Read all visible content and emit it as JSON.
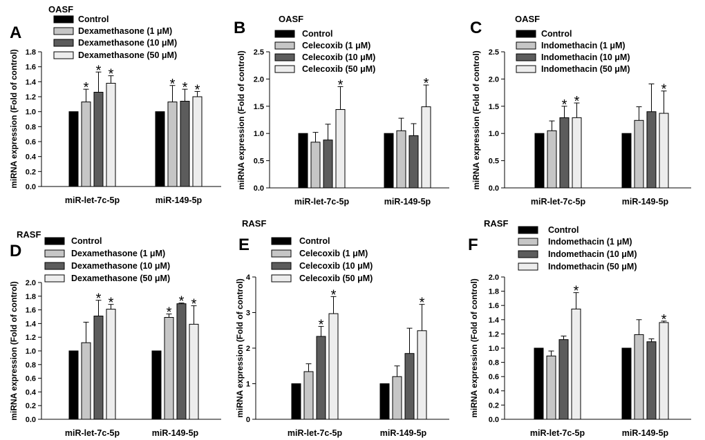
{
  "figure": {
    "colors": {
      "Control": "#000000",
      "low": "#c6c6c6",
      "mid": "#5c5c5c",
      "high": "#ededed"
    }
  },
  "chart_data": [
    {
      "panel": "A",
      "condition": "OASF",
      "type": "bar",
      "ylabel": "miRNA expression (Fold of control)",
      "ylim": [
        0,
        1.8
      ],
      "yticks": [
        "0.0",
        "0.2",
        "0.4",
        "0.6",
        "0.8",
        "1.0",
        "1.2",
        "1.4",
        "1.6",
        "1.8"
      ],
      "categories": [
        "miR-let-7c-5p",
        "miR-149-5p"
      ],
      "series": [
        {
          "name": "Control",
          "legend": "Control",
          "values": [
            1.0,
            1.0
          ],
          "err": [
            0,
            0
          ],
          "sig": [
            false,
            false
          ]
        },
        {
          "name": "Dexamethasone (1 μM)",
          "legend": "Dexamethasone (1 μM)",
          "values": [
            1.13,
            1.13
          ],
          "err": [
            0.17,
            0.22
          ],
          "sig": [
            true,
            true
          ]
        },
        {
          "name": "Dexamethasone (10 μM)",
          "legend": "Dexamethasone (10 μM)",
          "values": [
            1.26,
            1.14
          ],
          "err": [
            0.27,
            0.16
          ],
          "sig": [
            true,
            true
          ]
        },
        {
          "name": "Dexamethasone (50 μM)",
          "legend": "Dexamethasone (50 μM)",
          "values": [
            1.38,
            1.2
          ],
          "err": [
            0.1,
            0.07
          ],
          "sig": [
            true,
            true
          ]
        }
      ]
    },
    {
      "panel": "B",
      "condition": "OASF",
      "type": "bar",
      "ylabel": "miRNA expression (Fold of control)",
      "ylim": [
        0,
        2.5
      ],
      "yticks": [
        "0.0",
        "0.5",
        "1.0",
        "1.5",
        "2.0",
        "2.5"
      ],
      "categories": [
        "miR-let-7c-5p",
        "miR-149-5p"
      ],
      "series": [
        {
          "name": "Control",
          "legend": "Control",
          "values": [
            1.0,
            1.0
          ],
          "err": [
            0,
            0
          ],
          "sig": [
            false,
            false
          ]
        },
        {
          "name": "Celecoxib (1 μM)",
          "legend": "Celecoxib (1 μM)",
          "values": [
            0.84,
            1.05
          ],
          "err": [
            0.18,
            0.23
          ],
          "sig": [
            false,
            false
          ]
        },
        {
          "name": "Celecoxib (10 μM)",
          "legend": "Celecoxib (10 μM)",
          "values": [
            0.88,
            0.96
          ],
          "err": [
            0.29,
            0.22
          ],
          "sig": [
            false,
            false
          ]
        },
        {
          "name": "Celecoxib (50 μM)",
          "legend": "Celecoxib (50 μM)",
          "values": [
            1.44,
            1.49
          ],
          "err": [
            0.42,
            0.4
          ],
          "sig": [
            true,
            true
          ]
        }
      ]
    },
    {
      "panel": "C",
      "condition": "OASF",
      "type": "bar",
      "ylabel": "miRNA expression (Fold of control)",
      "ylim": [
        0,
        2.5
      ],
      "yticks": [
        "0.0",
        "0.5",
        "1.0",
        "1.5",
        "2.0",
        "2.5"
      ],
      "categories": [
        "miR-let-7c-5p",
        "miR-149-5p"
      ],
      "series": [
        {
          "name": "Control",
          "legend": "Control",
          "values": [
            1.0,
            1.0
          ],
          "err": [
            0,
            0
          ],
          "sig": [
            false,
            false
          ]
        },
        {
          "name": "Indomethacin (1 μM)",
          "legend": "Indomethacin (1 μM)",
          "values": [
            1.05,
            1.24
          ],
          "err": [
            0.18,
            0.25
          ],
          "sig": [
            false,
            false
          ]
        },
        {
          "name": "Indomethacin (10 μM)",
          "legend": "Indomethacin (10 μM)",
          "values": [
            1.29,
            1.4
          ],
          "err": [
            0.21,
            0.51
          ],
          "sig": [
            true,
            false
          ]
        },
        {
          "name": "Indomethacin (50 μM)",
          "legend": "Indomethacin (50 μM)",
          "values": [
            1.29,
            1.37
          ],
          "err": [
            0.27,
            0.41
          ],
          "sig": [
            true,
            true
          ]
        }
      ]
    },
    {
      "panel": "D",
      "condition": "RASF",
      "type": "bar",
      "ylabel": "miRNA expression (Fold of control)",
      "ylim": [
        0,
        2.0
      ],
      "yticks": [
        "0.0",
        "0.2",
        "0.4",
        "0.6",
        "0.8",
        "1.0",
        "1.2",
        "1.4",
        "1.6",
        "1.8",
        "2.0"
      ],
      "categories": [
        "miR-let-7c-5p",
        "miR-149-5p"
      ],
      "series": [
        {
          "name": "Control",
          "legend": "Control",
          "values": [
            1.0,
            1.0
          ],
          "err": [
            0,
            0
          ],
          "sig": [
            false,
            false
          ]
        },
        {
          "name": "Dexamethasone (1 μM)",
          "legend": "Dexamethasone  (1  μM)",
          "values": [
            1.12,
            1.49
          ],
          "err": [
            0.3,
            0.05
          ],
          "sig": [
            false,
            true
          ]
        },
        {
          "name": "Dexamethasone (10 μM)",
          "legend": "Dexamethasone  (10  μM)",
          "values": [
            1.51,
            1.69
          ],
          "err": [
            0.23,
            0.01
          ],
          "sig": [
            true,
            true
          ]
        },
        {
          "name": "Dexamethasone (50 μM)",
          "legend": "Dexamethasone   (50  μM)",
          "values": [
            1.61,
            1.39
          ],
          "err": [
            0.07,
            0.27
          ],
          "sig": [
            true,
            true
          ]
        }
      ]
    },
    {
      "panel": "E",
      "condition": "RASF",
      "type": "bar",
      "ylabel": "miRNA expression (Fold of control)",
      "ylim": [
        0,
        4
      ],
      "yticks": [
        "0",
        "1",
        "2",
        "3",
        "4"
      ],
      "categories": [
        "miR-let-7c-5p",
        "miR-149-5p"
      ],
      "series": [
        {
          "name": "Control",
          "legend": "Control",
          "values": [
            1.0,
            1.0
          ],
          "err": [
            0,
            0
          ],
          "sig": [
            false,
            false
          ]
        },
        {
          "name": "Celecoxib (1 μM)",
          "legend": "Celecoxib  (1  μM)",
          "values": [
            1.34,
            1.2
          ],
          "err": [
            0.22,
            0.3
          ],
          "sig": [
            false,
            false
          ]
        },
        {
          "name": "Celecoxib (10 μM)",
          "legend": "Celecoxib  (10  μM)",
          "values": [
            2.33,
            1.85
          ],
          "err": [
            0.28,
            0.71
          ],
          "sig": [
            true,
            false
          ]
        },
        {
          "name": "Celecoxib (50 μM)",
          "legend": "Celecoxib  (50  μM)",
          "values": [
            2.97,
            2.49
          ],
          "err": [
            0.48,
            0.74
          ],
          "sig": [
            true,
            true
          ]
        }
      ]
    },
    {
      "panel": "F",
      "condition": "RASF",
      "type": "bar",
      "ylabel": "miRNA expression (Fold of control)",
      "ylim": [
        0,
        2.0
      ],
      "yticks": [
        "0.0",
        "0.2",
        "0.4",
        "0.6",
        "0.8",
        "1.0",
        "1.2",
        "1.4",
        "1.6",
        "1.8",
        "2.0"
      ],
      "categories": [
        "miR-let-7c-5p",
        "miR-149-5p"
      ],
      "series": [
        {
          "name": "Control",
          "legend": "Control",
          "values": [
            1.0,
            1.0
          ],
          "err": [
            0,
            0
          ],
          "sig": [
            false,
            false
          ]
        },
        {
          "name": "Indomethacin (1 μM)",
          "legend": "Indomethacin (1  μM)",
          "values": [
            0.89,
            1.19
          ],
          "err": [
            0.07,
            0.21
          ],
          "sig": [
            false,
            false
          ]
        },
        {
          "name": "Indomethacin (10 μM)",
          "legend": "Indomethacin (10  μM)",
          "values": [
            1.12,
            1.09
          ],
          "err": [
            0.05,
            0.04
          ],
          "sig": [
            false,
            false
          ]
        },
        {
          "name": "Indomethacin (50 μM)",
          "legend": "Indomethacin (50  μM)",
          "values": [
            1.55,
            1.36
          ],
          "err": [
            0.23,
            0.02
          ],
          "sig": [
            true,
            true
          ]
        }
      ]
    }
  ]
}
